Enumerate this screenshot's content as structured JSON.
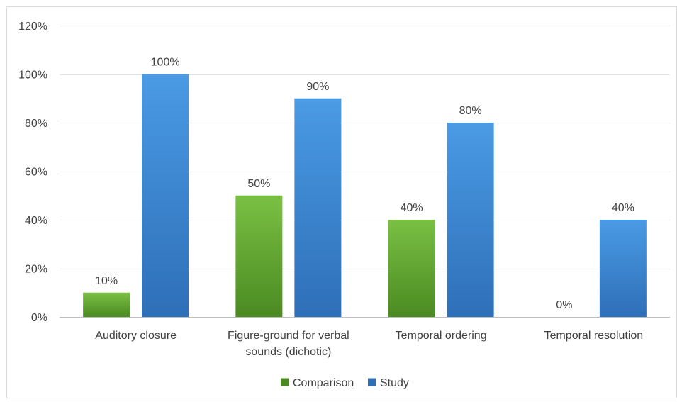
{
  "chart_data": {
    "type": "bar",
    "title": "",
    "xlabel": "",
    "ylabel": "",
    "categories": [
      [
        "Auditory closure"
      ],
      [
        "Figure-ground for verbal",
        "sounds (dichotic)"
      ],
      [
        "Temporal ordering"
      ],
      [
        "Temporal resolution"
      ]
    ],
    "series": [
      {
        "name": "Comparison",
        "values": [
          10,
          50,
          40,
          0
        ],
        "color_top": "#79c043",
        "color_bottom": "#4b8a22"
      },
      {
        "name": "Study",
        "values": [
          100,
          90,
          80,
          40
        ],
        "color_top": "#4a9ae4",
        "color_bottom": "#2e6fb8"
      }
    ],
    "data_labels": [
      [
        "10%",
        "50%",
        "40%",
        "0%"
      ],
      [
        "100%",
        "90%",
        "80%",
        "40%"
      ]
    ],
    "ylim": [
      0,
      120
    ],
    "yticks": [
      0,
      20,
      40,
      60,
      80,
      100,
      120
    ],
    "ytick_labels": [
      "0%",
      "20%",
      "40%",
      "60%",
      "80%",
      "100%",
      "120%"
    ],
    "grid": true,
    "legend_position": "bottom"
  }
}
